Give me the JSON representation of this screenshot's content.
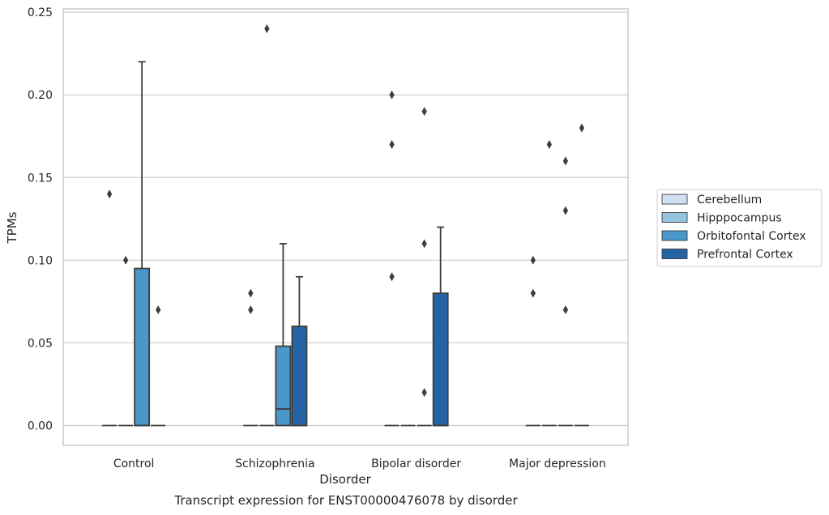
{
  "chart_data": {
    "type": "box",
    "title": "Transcript expression for ENST00000476078 by disorder",
    "xlabel": "Disorder",
    "ylabel": "TPMs",
    "ylim": [
      -0.012,
      0.252
    ],
    "yticks": [
      "0.00",
      "0.05",
      "0.10",
      "0.15",
      "0.20",
      "0.25"
    ],
    "grid": true,
    "legend_position": "right",
    "categories": [
      "Control",
      "Schizophrenia",
      "Bipolar disorder",
      "Major depression"
    ],
    "series": [
      {
        "name": "Cerebellum",
        "color": "#d0e1f2",
        "boxes": [
          {
            "q1": 0,
            "median": 0,
            "q3": 0,
            "whislo": 0,
            "whishi": 0,
            "fliers": [
              0.14
            ]
          },
          {
            "q1": 0,
            "median": 0,
            "q3": 0,
            "whislo": 0,
            "whishi": 0,
            "fliers": [
              0.08,
              0.07
            ]
          },
          {
            "q1": 0,
            "median": 0,
            "q3": 0,
            "whislo": 0,
            "whishi": 0,
            "fliers": [
              0.2,
              0.17,
              0.09
            ]
          },
          {
            "q1": 0,
            "median": 0,
            "q3": 0,
            "whislo": 0,
            "whishi": 0,
            "fliers": [
              0.1,
              0.08
            ]
          }
        ]
      },
      {
        "name": "Hipppocampus",
        "color": "#94c4df",
        "boxes": [
          {
            "q1": 0,
            "median": 0,
            "q3": 0,
            "whislo": 0,
            "whishi": 0,
            "fliers": [
              0.1
            ]
          },
          {
            "q1": 0,
            "median": 0,
            "q3": 0,
            "whislo": 0,
            "whishi": 0,
            "fliers": [
              0.24
            ]
          },
          {
            "q1": 0,
            "median": 0,
            "q3": 0,
            "whislo": 0,
            "whishi": 0,
            "fliers": []
          },
          {
            "q1": 0,
            "median": 0,
            "q3": 0,
            "whislo": 0,
            "whishi": 0,
            "fliers": [
              0.17
            ]
          }
        ]
      },
      {
        "name": "Orbitofontal Cortex",
        "color": "#4a98c9",
        "boxes": [
          {
            "q1": 0,
            "median": 0,
            "q3": 0.095,
            "whislo": 0,
            "whishi": 0.22,
            "fliers": []
          },
          {
            "q1": 0,
            "median": 0.01,
            "q3": 0.048,
            "whislo": 0,
            "whishi": 0.11,
            "fliers": []
          },
          {
            "q1": 0,
            "median": 0,
            "q3": 0,
            "whislo": 0,
            "whishi": 0,
            "fliers": [
              0.19,
              0.11,
              0.02
            ]
          },
          {
            "q1": 0,
            "median": 0,
            "q3": 0,
            "whislo": 0,
            "whishi": 0,
            "fliers": [
              0.16,
              0.13,
              0.07
            ]
          }
        ]
      },
      {
        "name": "Prefrontal Cortex",
        "color": "#2464a4",
        "boxes": [
          {
            "q1": 0,
            "median": 0,
            "q3": 0,
            "whislo": 0,
            "whishi": 0,
            "fliers": [
              0.07
            ]
          },
          {
            "q1": 0,
            "median": 0,
            "q3": 0.06,
            "whislo": 0,
            "whishi": 0.09,
            "fliers": []
          },
          {
            "q1": 0,
            "median": 0,
            "q3": 0.08,
            "whislo": 0,
            "whishi": 0.12,
            "fliers": []
          },
          {
            "q1": 0,
            "median": 0,
            "q3": 0,
            "whislo": 0,
            "whishi": 0,
            "fliers": [
              0.18
            ]
          }
        ]
      }
    ]
  }
}
